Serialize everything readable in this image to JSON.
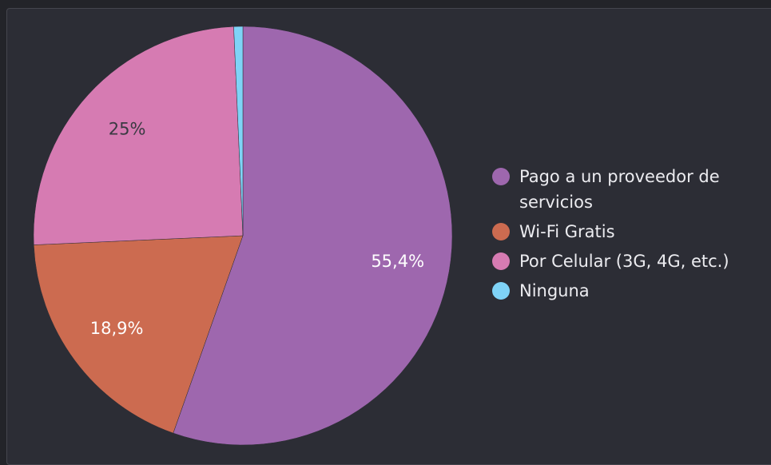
{
  "chart_data": {
    "type": "pie",
    "categories": [
      "Pago a un proveedor de servicios",
      "Wi-Fi Gratis",
      "Por Celular (3G, 4G, etc.)",
      "Ninguna"
    ],
    "values": [
      55.4,
      18.9,
      25,
      0.7
    ],
    "value_labels": [
      "55,4%",
      "18,9%",
      "25%",
      null
    ],
    "colors": [
      "#9e67ae",
      "#cc6b50",
      "#d67bb2",
      "#7fd3f7"
    ],
    "legend": "right"
  }
}
